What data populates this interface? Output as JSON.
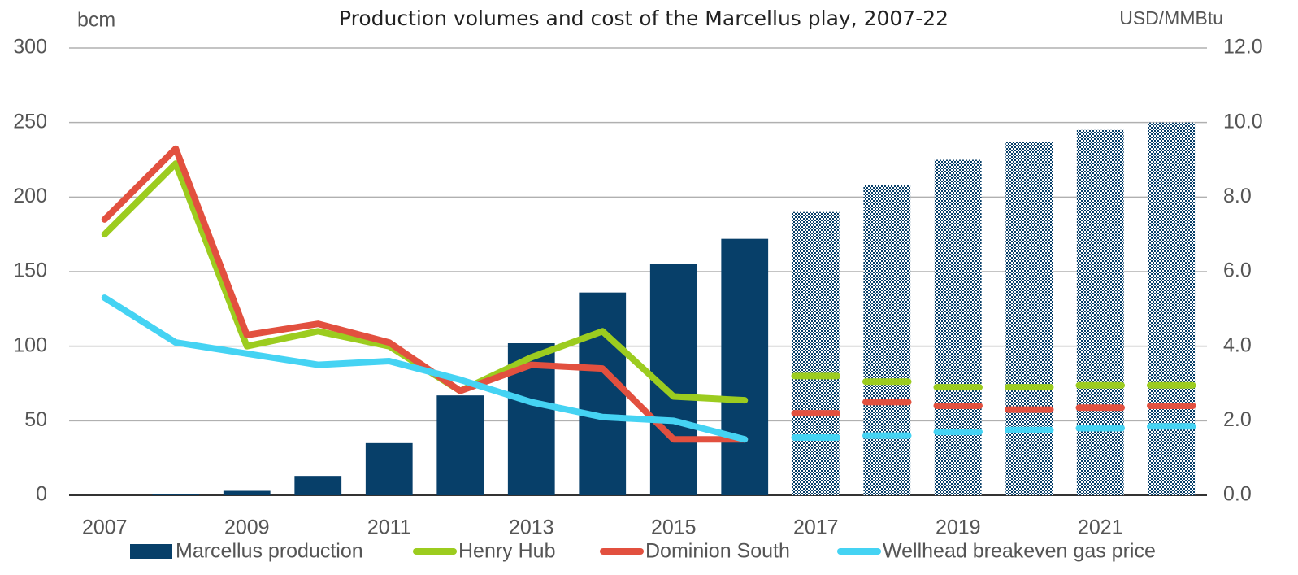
{
  "chart_data": {
    "type": "bar",
    "title": "Production volumes and cost of the Marcellus play, 2007-22",
    "y_label": "bcm",
    "y2_label": "USD/MMBtu",
    "categories": [
      "2007",
      null,
      "2009",
      null,
      "2011",
      null,
      "2013",
      null,
      "2015",
      null,
      "2017",
      null,
      "2019",
      null,
      "2021",
      null
    ],
    "hatch_from": 10,
    "series": [
      {
        "name": "Marcellus production",
        "type": "bar",
        "axis": "y",
        "color": "#073f69",
        "values": [
          0,
          0.5,
          3,
          13,
          35,
          67,
          102,
          136,
          155,
          172,
          190,
          208,
          225,
          237,
          245,
          250
        ]
      },
      {
        "name": "Henry Hub",
        "type": "line",
        "axis": "y2",
        "color": "#9ccc1f",
        "values": [
          7.0,
          8.9,
          4.0,
          4.4,
          4.0,
          2.8,
          3.7,
          4.4,
          2.65,
          2.55,
          3.2,
          3.05,
          2.9,
          2.9,
          2.95,
          2.95
        ]
      },
      {
        "name": "Dominion South",
        "type": "line",
        "axis": "y2",
        "color": "#e2503f",
        "values": [
          7.4,
          9.3,
          4.3,
          4.6,
          4.1,
          2.8,
          3.5,
          3.4,
          1.5,
          1.5,
          2.2,
          2.5,
          2.4,
          2.3,
          2.35,
          2.4
        ]
      },
      {
        "name": "Wellhead breakeven gas price",
        "type": "line",
        "axis": "y2",
        "color": "#45d3f3",
        "values": [
          5.3,
          4.1,
          3.8,
          3.5,
          3.6,
          3.1,
          2.5,
          2.1,
          2.0,
          1.5,
          1.55,
          1.6,
          1.7,
          1.75,
          1.8,
          1.85
        ]
      }
    ],
    "ylim": [
      0,
      300
    ],
    "yticks": [
      0,
      50,
      100,
      150,
      200,
      250,
      300
    ],
    "y2lim": [
      0,
      12
    ],
    "y2ticks": [
      {
        "value": 0,
        "label": "0.0"
      },
      {
        "value": 2,
        "label": "2.0"
      },
      {
        "value": 4,
        "label": "4.0"
      },
      {
        "value": 6,
        "label": "6.0"
      },
      {
        "value": 8,
        "label": "8.0"
      },
      {
        "value": 10,
        "label": "10.0"
      },
      {
        "value": 12,
        "label": "12.0"
      }
    ],
    "grid": true,
    "legend": "bottom"
  }
}
